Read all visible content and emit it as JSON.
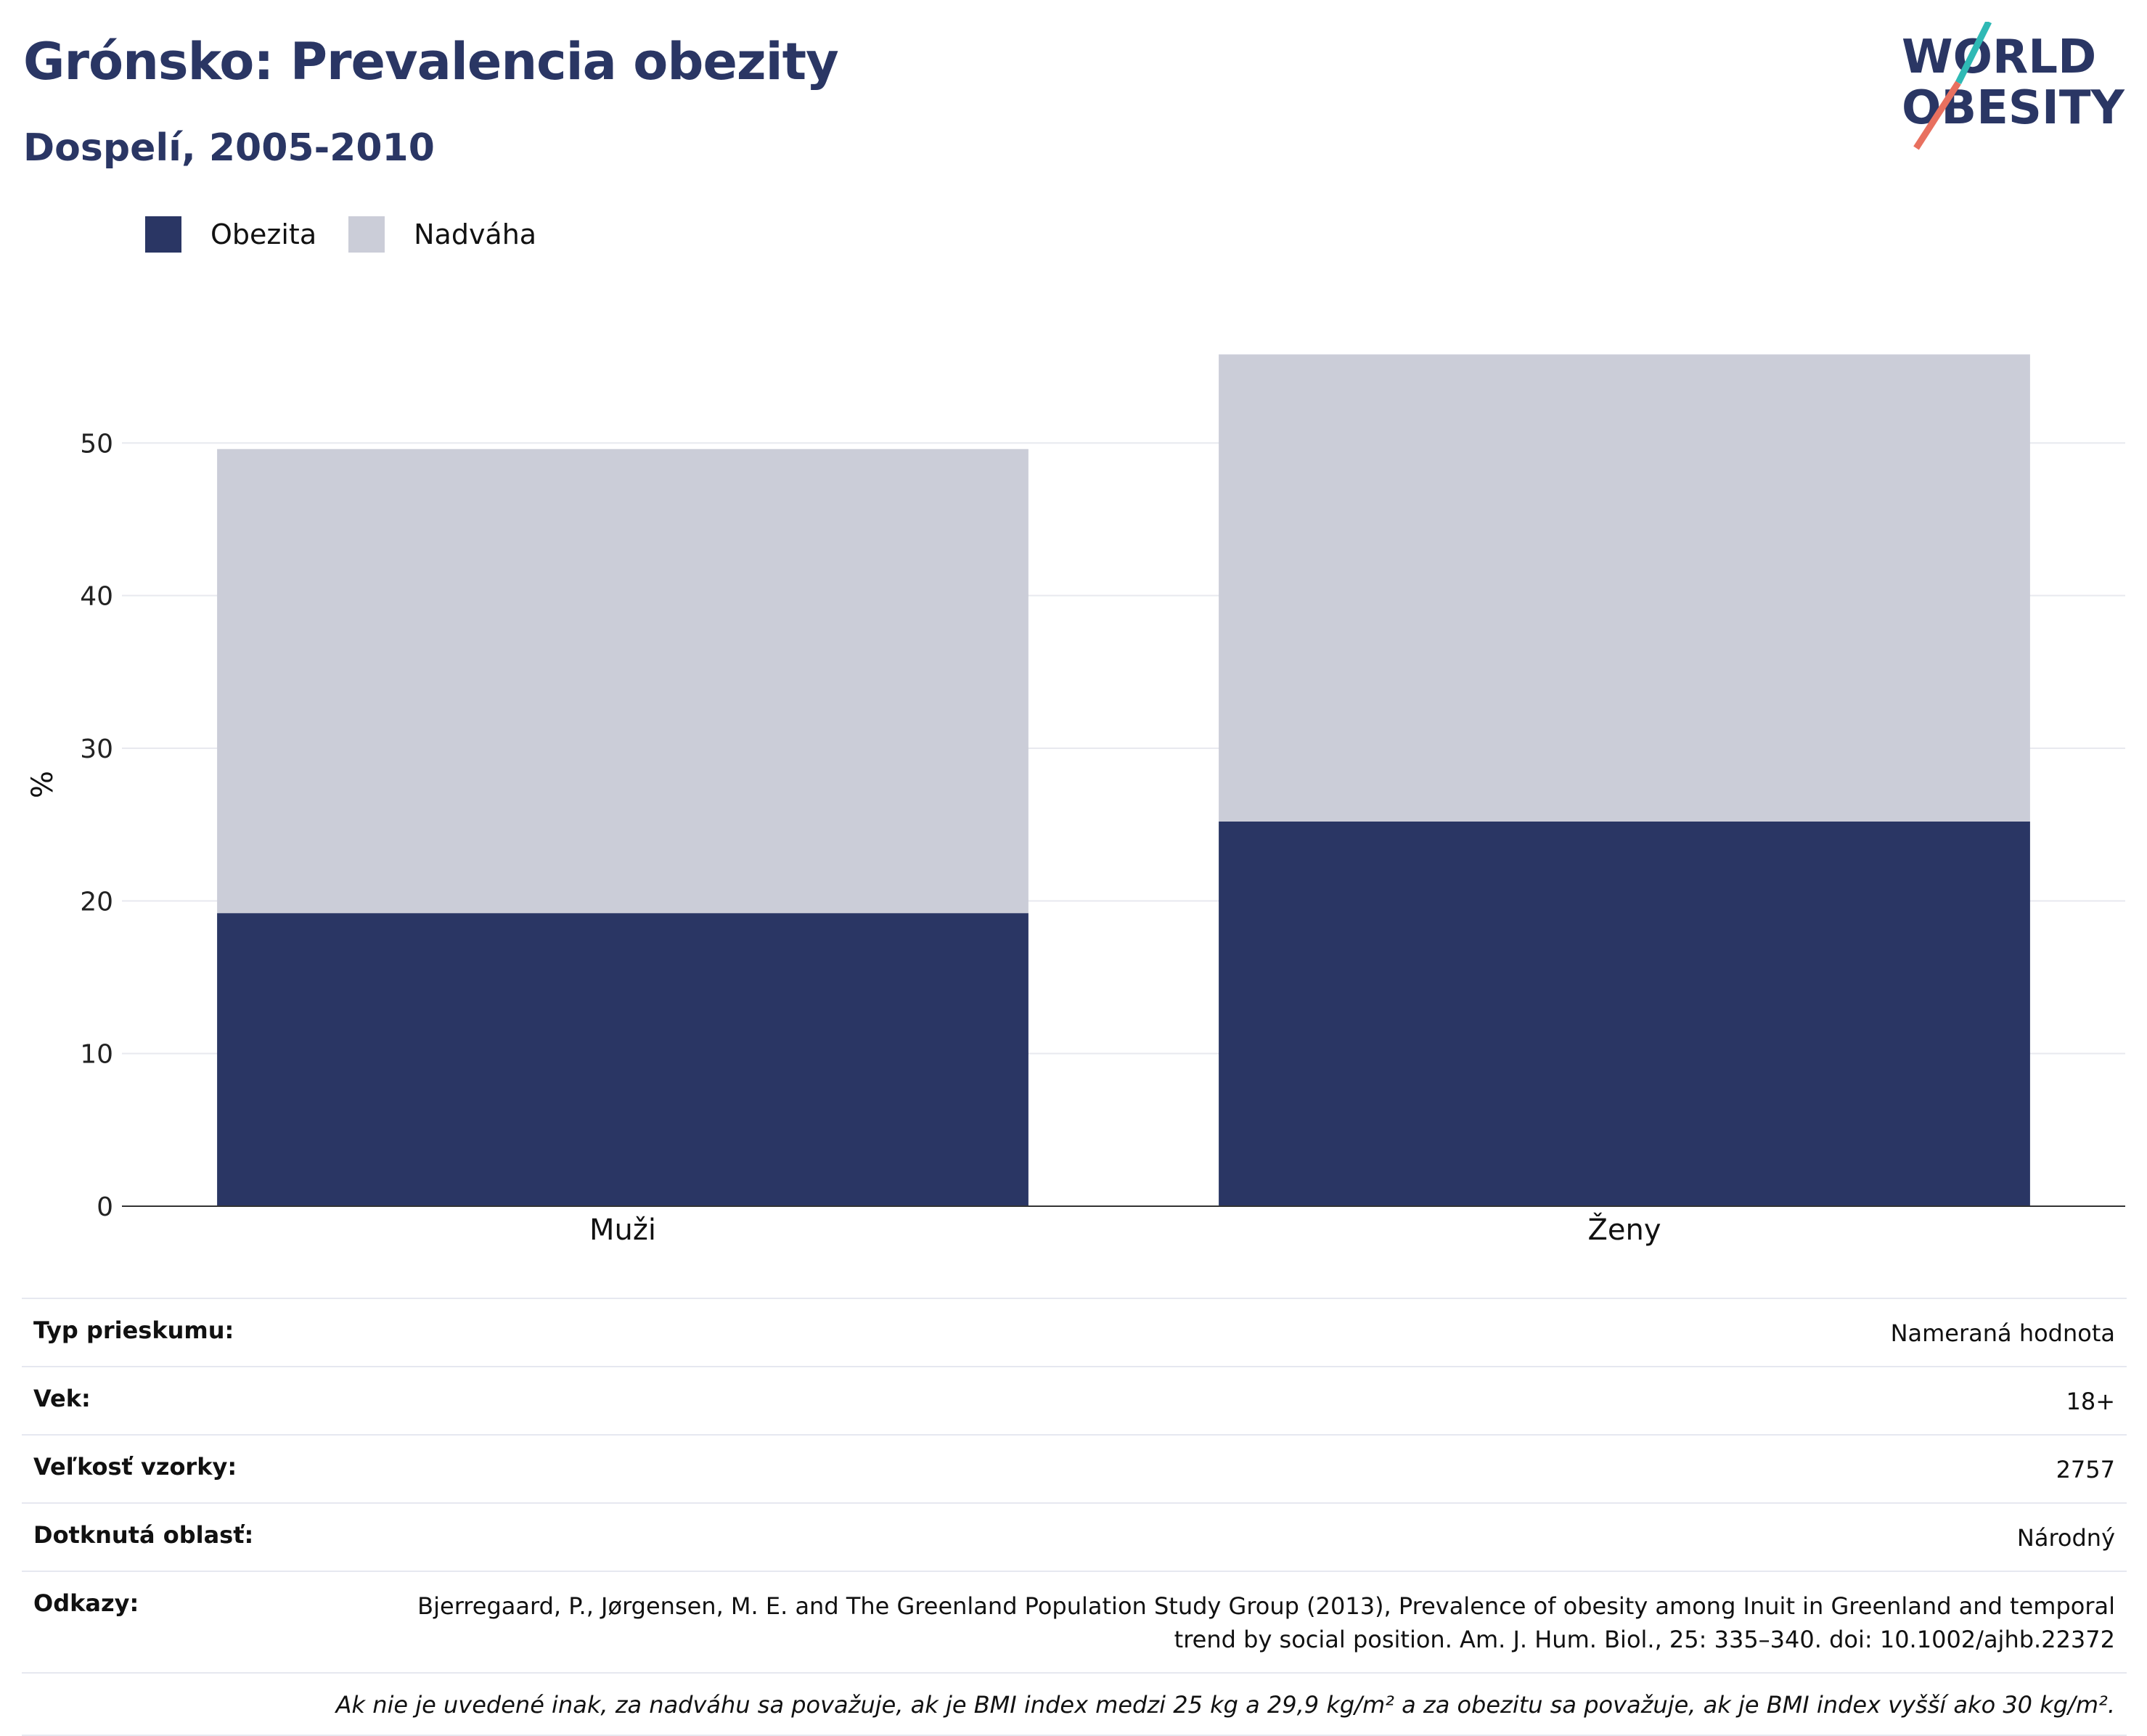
{
  "header": {
    "title": "Grónsko: Prevalencia obezity",
    "subtitle": "Dospelí, 2005-2010"
  },
  "logo": {
    "line1": "WORLD",
    "line2": "OBESITY"
  },
  "colors": {
    "obesity": "#2a3664",
    "overweight": "#cbcdd8",
    "title": "#2a3664",
    "logo_teal": "#2fb9b5",
    "logo_coral": "#e8705f"
  },
  "chart_data": {
    "type": "bar",
    "stacked": true,
    "categories": [
      "Muži",
      "Ženy"
    ],
    "series": [
      {
        "name": "Obezita",
        "values": [
          19.2,
          25.2
        ],
        "color": "#2a3664"
      },
      {
        "name": "Nadváha",
        "values": [
          30.4,
          30.6
        ],
        "color": "#cbcdd8"
      }
    ],
    "ylabel": "%",
    "ylim": [
      0,
      60
    ],
    "yticks": [
      0,
      10,
      20,
      30,
      40,
      50
    ],
    "grid": true,
    "legend_position": "top-left"
  },
  "info": {
    "rows": [
      {
        "key": "Typ prieskumu:",
        "value": "Nameraná hodnota"
      },
      {
        "key": "Vek:",
        "value": "18+"
      },
      {
        "key": "Veľkosť vzorky:",
        "value": "2757"
      },
      {
        "key": "Dotknutá oblasť:",
        "value": "Národný"
      },
      {
        "key": "Odkazy:",
        "value": "Bjerregaard, P., Jørgensen, M. E. and The Greenland Population Study Group (2013), Prevalence of obesity among Inuit in Greenland and temporal trend by social position. Am. J. Hum. Biol., 25: 335–340. doi: 10.1002/ajhb.22372"
      }
    ],
    "note": "Ak nie je uvedené inak, za nadváhu sa považuje, ak je BMI index medzi 25 kg a 29,9 kg/m² a za obezitu sa považuje, ak je BMI index vyšší ako 30 kg/m²."
  }
}
